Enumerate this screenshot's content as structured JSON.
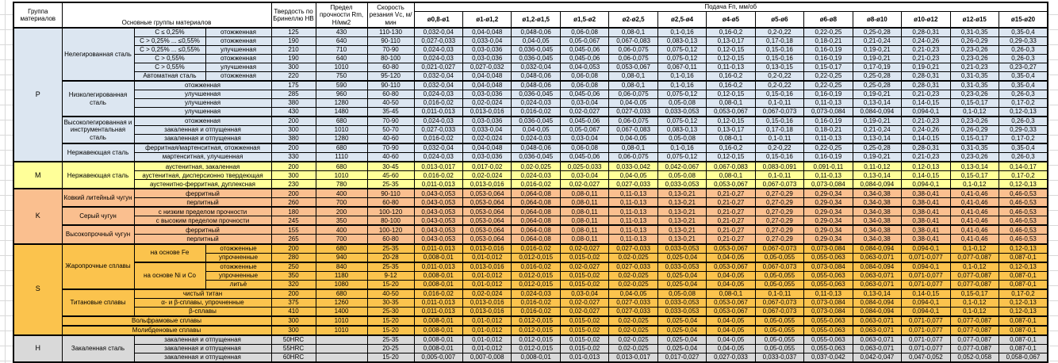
{
  "header": {
    "group_col": "Группа материалов",
    "main_groups_col": "Основные группы материалов",
    "hardness_col": "Твердость по Бринеллю HB",
    "strength_col": "Предел прочности Rm, Н/мм2",
    "speed_col": "Скорость резания Vc, м/мин",
    "feed_title": "Подача Fп, мм/об",
    "feed_cols": [
      "ø0,8-ø1",
      "ø1-ø1,2",
      "ø1,2-ø1,5",
      "ø1,5-ø2",
      "ø2-ø2,5",
      "ø2,5-ø4",
      "ø4-ø5",
      "ø5-ø6",
      "ø6-ø8",
      "ø8-ø10",
      "ø10-ø12",
      "ø12-ø15",
      "ø15-ø20"
    ]
  },
  "feed_patterns": {
    "A": [
      "0,032-0,04",
      "0,04-0,048",
      "0,048-0,06",
      "0,06-0,08",
      "0,08-0,1",
      "0,1-0,16",
      "0,16-0,2",
      "0,2-0,22",
      "0,22-0,25",
      "0,25-0,28",
      "0,28-0,31",
      "0,31-0,35",
      "0,35-0,4"
    ],
    "B": [
      "0,027-0,033",
      "0,033-0,04",
      "0,04-0,05",
      "0,05-0,067",
      "0,067-0,083",
      "0,083-0,13",
      "0,13-0,17",
      "0,17-0,18",
      "0,18-0,21",
      "0,21-0,24",
      "0,24-0,26",
      "0,26-0,29",
      "0,29-0,33"
    ],
    "C": [
      "0,024-0,03",
      "0,03-0,036",
      "0,036-0,045",
      "0,045-0,06",
      "0,06-0,075",
      "0,075-0,12",
      "0,12-0,15",
      "0,15-0,16",
      "0,16-0,19",
      "0,19-0,21",
      "0,21-0,23",
      "0,23-0,26",
      "0,26-0,3"
    ],
    "D": [
      "0,021-0,027",
      "0,027-0,032",
      "0,032-0,04",
      "0,04-0,053",
      "0,053-0,067",
      "0,067-0,11",
      "0,11-0,13",
      "0,13-0,15",
      "0,15-0,17",
      "0,17-0,19",
      "0,19-0,21",
      "0,21-0,23",
      "0,23-0,27"
    ],
    "E": [
      "0,016-0,02",
      "0,02-0,024",
      "0,024-0,03",
      "0,03-0,04",
      "0,04-0,05",
      "0,05-0,08",
      "0,08-0,1",
      "0,1-0,11",
      "0,11-0,13",
      "0,13-0,14",
      "0,14-0,15",
      "0,15-0,17",
      "0,17-0,2"
    ],
    "F": [
      "0,011-0,013",
      "0,013-0,016",
      "0,016-0,02",
      "0,02-0,027",
      "0,027-0,033",
      "0,033-0,053",
      "0,053-0,067",
      "0,067-0,073",
      "0,073-0,084",
      "0,084-0,094",
      "0,094-0,1",
      "0,1-0,12",
      "0,12-0,13"
    ],
    "G": [
      "0,013-0,017",
      "0,017-0,02",
      "0,02-0,025",
      "0,025-0,033",
      "0,033-0,042",
      "0,042-0,067",
      "0,067-0,083",
      "0,083-0,091",
      "0,091-0,11",
      "0,11-0,12",
      "0,12-0,13",
      "0,13-0,14",
      "0,14-0,17"
    ],
    "H": [
      "0,043-0,053",
      "0,053-0,064",
      "0,064-0,08",
      "0,08-0,11",
      "0,11-0,13",
      "0,13-0,21",
      "0,21-0,27",
      "0,27-0,29",
      "0,29-0,34",
      "0,34-0,38",
      "0,38-0,41",
      "0,41-0,46",
      "0,46-0,53"
    ],
    "I": [
      "0,008-0,01",
      "0,01-0,012",
      "0,012-0,015",
      "0,015-0,02",
      "0,02-0,025",
      "0,025-0,04",
      "0,04-0,05",
      "0,05-0,055",
      "0,055-0,063",
      "0,063-0,071",
      "0,071-0,077",
      "0,077-0,087",
      "0,087-0,1"
    ],
    "J": [
      "0,005-0,007",
      "0,007-0,008",
      "0,008-0,01",
      "0,01-0,013",
      "0,013-0,017",
      "0,017-0,027",
      "0,027-0,033",
      "0,033-0,037",
      "0,037-0,042",
      "0,042-0,047",
      "0,047-0,052",
      "0,052-0,058",
      "0,058-0,067"
    ]
  },
  "groups": [
    {
      "letter": "P",
      "color": "#dce6f1",
      "rows": [
        {
          "thick": true,
          "fam": "Нелегированная сталь",
          "famspan": 6,
          "sub": "C ≤ 0,25%",
          "cond": "отожженная",
          "hb": "125",
          "rm": "430",
          "vc": "110-130",
          "feed": "A"
        },
        {
          "sub": "C > 0,25% ... ≤0,55%",
          "cond": "отожженная",
          "hb": "190",
          "rm": "640",
          "vc": "90-110",
          "feed": "B"
        },
        {
          "sub": "C > 0,25% ... ≤0,55%",
          "cond": "улучшенная",
          "hb": "210",
          "rm": "710",
          "vc": "70-90",
          "feed": "C"
        },
        {
          "sub": "C > 0,55%",
          "cond": "отожженная",
          "hb": "190",
          "rm": "640",
          "vc": "80-100",
          "feed": "C"
        },
        {
          "sub": "C > 0,55%",
          "cond": "улучшенная",
          "hb": "300",
          "rm": "1010",
          "vc": "60-80",
          "feed": "D"
        },
        {
          "sub": "Автоматная сталь",
          "cond": "отожженная",
          "hb": "220",
          "rm": "750",
          "vc": "95-120",
          "feed": "A"
        },
        {
          "thick": true,
          "fam": "Низколегированная сталь",
          "famspan": 4,
          "cond": "отожженная",
          "condspan": 2,
          "hb": "175",
          "rm": "590",
          "vc": "90-110",
          "feed": "A"
        },
        {
          "cond": "улучшенная",
          "condspan": 2,
          "hb": "285",
          "rm": "960",
          "vc": "60-80",
          "feed": "C"
        },
        {
          "cond": "улучшенная",
          "condspan": 2,
          "hb": "380",
          "rm": "1280",
          "vc": "40-50",
          "feed": "E"
        },
        {
          "cond": "улучшенная",
          "condspan": 2,
          "hb": "430",
          "rm": "1480",
          "vc": "35-45",
          "feed": "F"
        },
        {
          "thick": true,
          "fam": "Высоколегированная и инструментальная сталь",
          "famspan": 3,
          "cond": "отожженная",
          "condspan": 2,
          "hb": "200",
          "rm": "680",
          "vc": "70-90",
          "feed": "C"
        },
        {
          "cond": "закаленная и отпущенная",
          "condspan": 2,
          "hb": "300",
          "rm": "1010",
          "vc": "50-70",
          "feed": "B"
        },
        {
          "cond": "закаленная и отпущенная",
          "condspan": 2,
          "hb": "380",
          "rm": "1280",
          "vc": "40-60",
          "feed": "E"
        },
        {
          "thick": true,
          "fam": "Нержавеющая сталь",
          "famspan": 2,
          "cond": "ферритная/мартенситная, отожженная",
          "condspan": 2,
          "hb": "200",
          "rm": "680",
          "vc": "70-90",
          "feed": "A"
        },
        {
          "cond": "мартенситная, улучшенная",
          "condspan": 2,
          "hb": "330",
          "rm": "1110",
          "vc": "40-60",
          "feed": "C"
        }
      ]
    },
    {
      "letter": "M",
      "color": "#ffff99",
      "rows": [
        {
          "thick": true,
          "fam": "Нержавеющая сталь",
          "famspan": 3,
          "cond": "аустенитная, закаленная",
          "condspan": 2,
          "hb": "200",
          "rm": "680",
          "vc": "30-45",
          "feed": "G"
        },
        {
          "cond": "аустенитная, дисперсионно твердеющая",
          "condspan": 2,
          "hb": "300",
          "rm": "1010",
          "vc": "45-60",
          "feed": "E"
        },
        {
          "cond": "аустенитно-ферритная, дуплексная",
          "condspan": 2,
          "hb": "230",
          "rm": "780",
          "vc": "25-35",
          "feed": "F"
        }
      ]
    },
    {
      "letter": "K",
      "color": "#fabf8f",
      "rows": [
        {
          "thick": true,
          "fam": "Ковкий литейный чугун",
          "famspan": 2,
          "cond": "ферритный",
          "condspan": 2,
          "hb": "200",
          "rm": "400",
          "vc": "90-110",
          "feed": "H"
        },
        {
          "cond": "перлитный",
          "condspan": 2,
          "hb": "260",
          "rm": "700",
          "vc": "60-80",
          "feed": "H"
        },
        {
          "thick": true,
          "fam": "Серый чугун",
          "famspan": 2,
          "cond": "с низким пределом прочности",
          "condspan": 2,
          "hb": "180",
          "rm": "200",
          "vc": "100-120",
          "feed": "H"
        },
        {
          "cond": "с высоким пределом прочности",
          "condspan": 2,
          "hb": "245",
          "rm": "350",
          "vc": "80-100",
          "feed": "H"
        },
        {
          "thick": true,
          "fam": "Высокопрочный чугун",
          "famspan": 2,
          "cond": "ферритный",
          "condspan": 2,
          "hb": "155",
          "rm": "400",
          "vc": "100-120",
          "feed": "H"
        },
        {
          "cond": "перлитный",
          "condspan": 2,
          "hb": "265",
          "rm": "700",
          "vc": "60-80",
          "feed": "H"
        }
      ]
    },
    {
      "letter": "S",
      "color": "#fbc34d",
      "rows": [
        {
          "thick": true,
          "fam": "Жаропрочные сплавы",
          "famspan": 5,
          "sub": "на основе Fe",
          "subspan": 2,
          "cond": "отожженные",
          "hb": "200",
          "rm": "680",
          "vc": "25-35",
          "feed": "F"
        },
        {
          "cond": "упрочненные",
          "hb": "280",
          "rm": "940",
          "vc": "20-28",
          "feed": "I"
        },
        {
          "thick": true,
          "sub": "на основе Ni и Co",
          "subspan": 3,
          "cond": "отожженные",
          "hb": "250",
          "rm": "840",
          "vc": "25-35",
          "feed": "F"
        },
        {
          "cond": "упрочненные",
          "hb": "350",
          "rm": "1180",
          "vc": "9-12",
          "feed": "I"
        },
        {
          "cond": "литьё",
          "hb": "320",
          "rm": "1080",
          "vc": "15-20",
          "feed": "I"
        },
        {
          "thick": true,
          "fam": "Титановые сплавы",
          "famspan": 3,
          "cond": "чистый титан",
          "condspan": 2,
          "hb": "200",
          "rm": "680",
          "vc": "40-50",
          "feed": "E"
        },
        {
          "cond": "α- и β-сплавы, упрочненные",
          "condspan": 2,
          "hb": "375",
          "rm": "1260",
          "vc": "30-35",
          "feed": "F"
        },
        {
          "cond": "β-сплавы",
          "condspan": 2,
          "hb": "410",
          "rm": "1400",
          "vc": "25-30",
          "feed": "F"
        },
        {
          "thick": true,
          "cond": "Вольфрамовые сплавы",
          "condspan": 3,
          "hb": "300",
          "rm": "1010",
          "vc": "15-20",
          "feed": "I"
        },
        {
          "thick": true,
          "cond": "Молибденовые сплавы",
          "condspan": 3,
          "hb": "300",
          "rm": "1010",
          "vc": "15-20",
          "feed": "I"
        }
      ]
    },
    {
      "letter": "H",
      "color": "#d9d9d9",
      "rows": [
        {
          "thick": true,
          "fam": "Закаленная сталь",
          "famspan": 3,
          "cond": "закаленная и отпущенная",
          "condspan": 2,
          "hb": "50HRC",
          "rm": "",
          "vc": "25-35",
          "feed": "I"
        },
        {
          "cond": "закаленная и отпущенная",
          "condspan": 2,
          "hb": "55HRC",
          "rm": "",
          "vc": "20-25",
          "feed": "I"
        },
        {
          "cond": "закаленная и отпущенная",
          "condspan": 2,
          "hb": "60HRC",
          "rm": "",
          "vc": "15-20",
          "feed": "J"
        }
      ]
    }
  ]
}
